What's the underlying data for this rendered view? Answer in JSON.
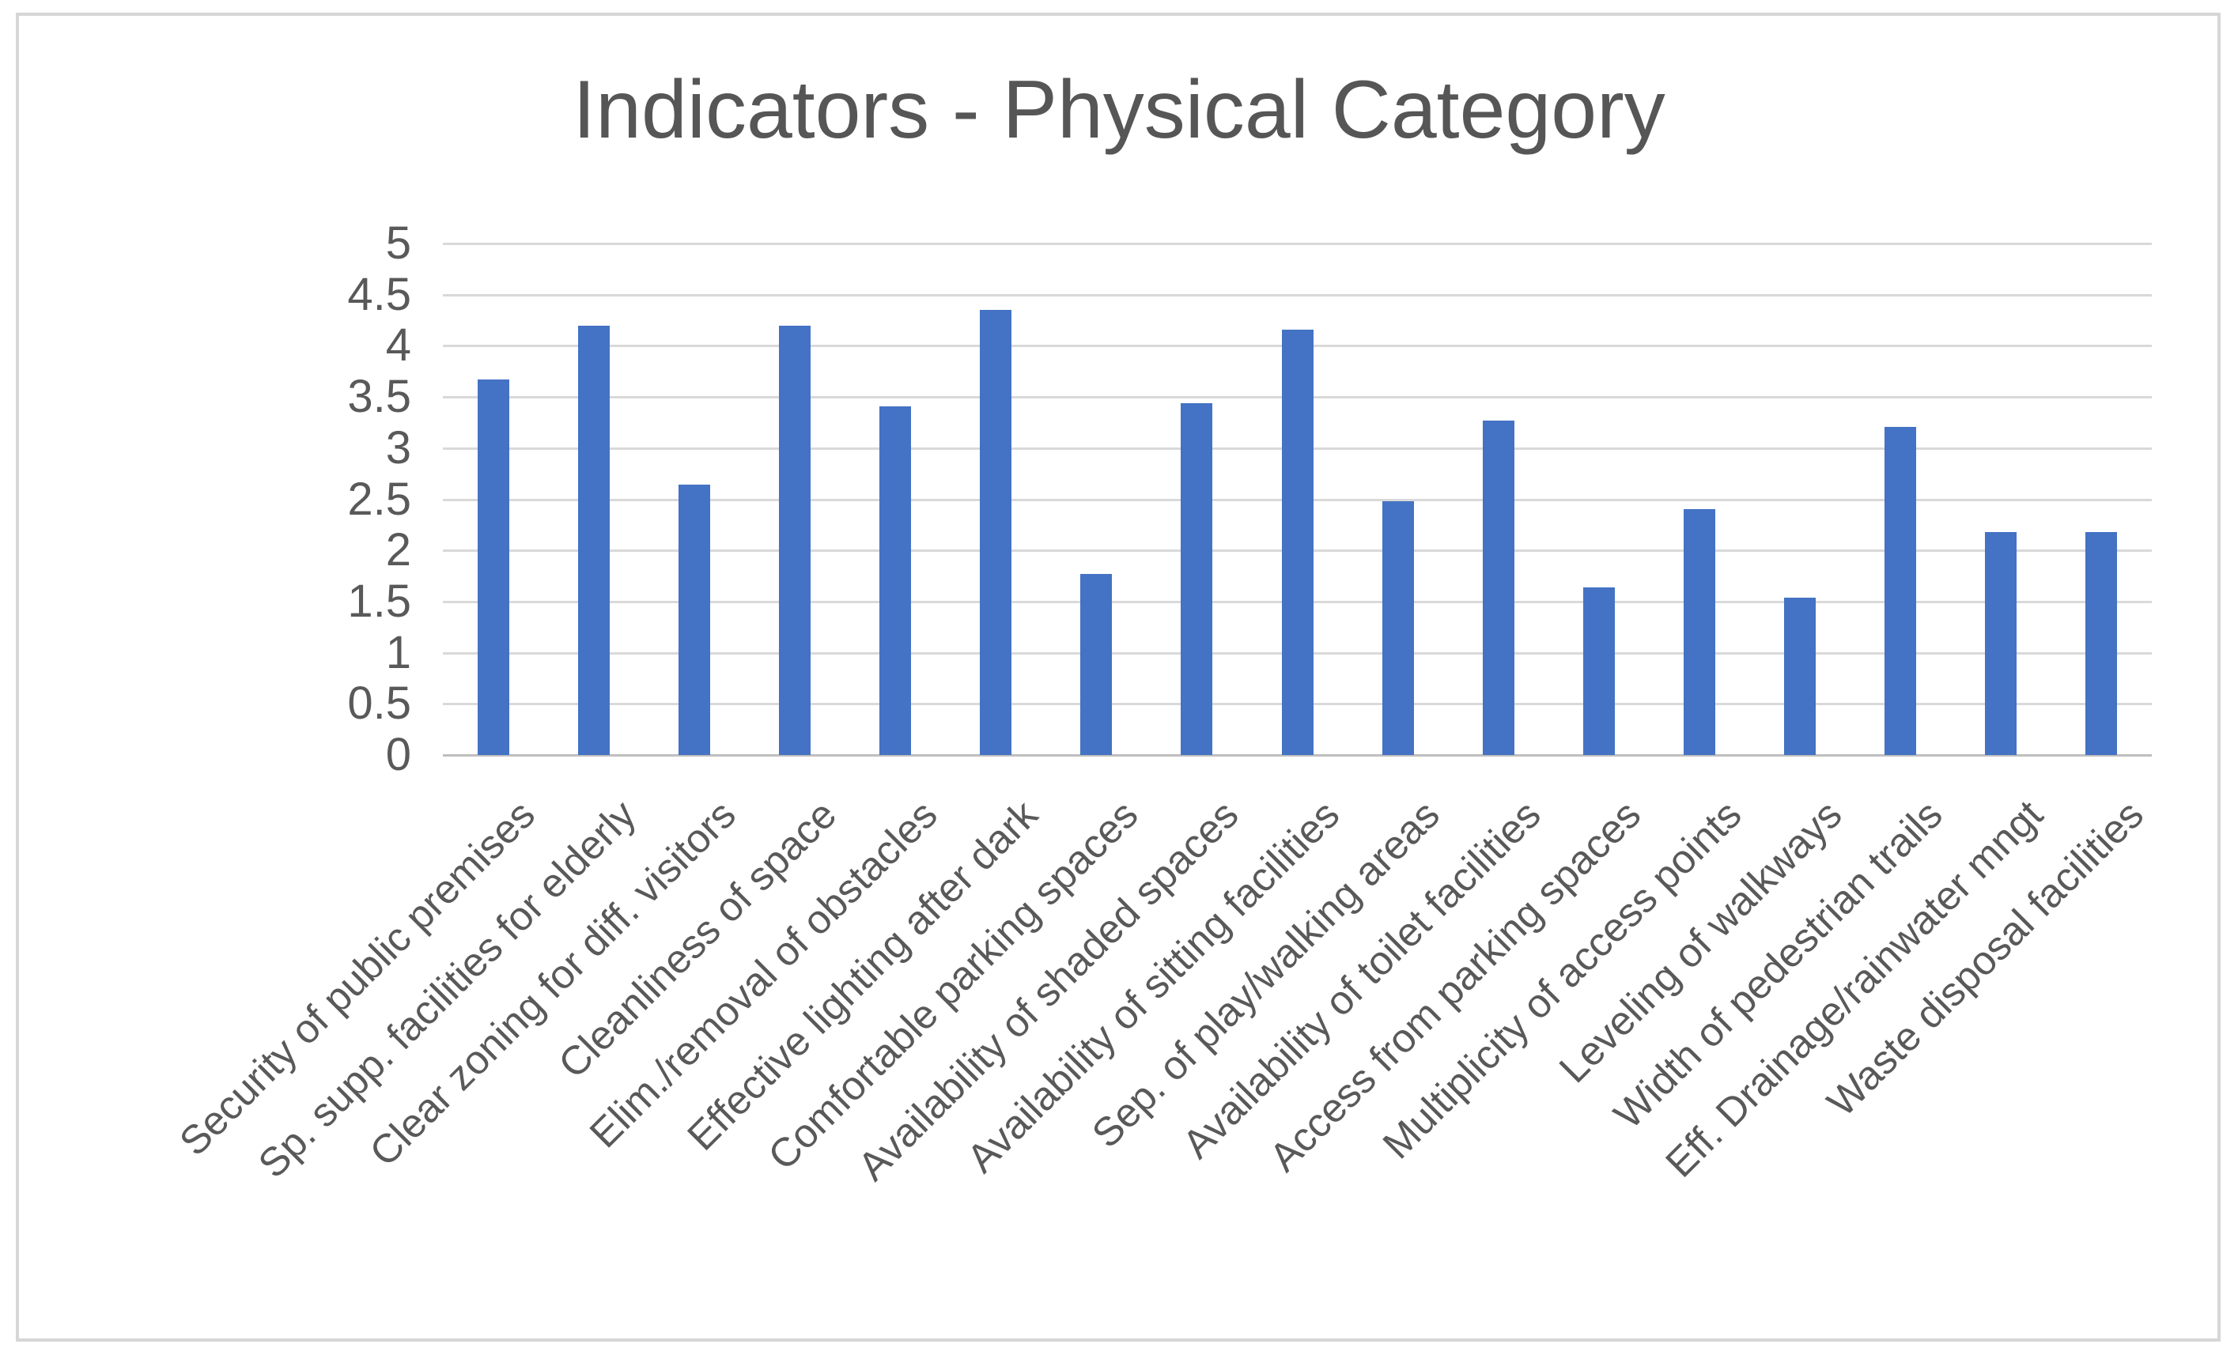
{
  "chart": {
    "title": "Indicators - Physical Category"
  },
  "chart_data": {
    "type": "bar",
    "title": "Indicators - Physical Category",
    "categories": [
      "Security of public premises",
      "Sp. supp. facilities for elderly",
      "Clear zoning for diff. visitors",
      "Cleanliness of space",
      "Elim./removal of obstacles",
      "Effective lighting after dark",
      "Comfortable parking spaces",
      "Availability of shaded spaces",
      "Availability of sitting facilities",
      "Sep. of play/walking areas",
      "Availability of toilet facilities",
      "Access from parking spaces",
      "Multiplicity of access points",
      "Leveling of walkways",
      "Width of pedestrian trails",
      "Eff. Drainage/rainwater mngt",
      "Waste disposal facilities"
    ],
    "values": [
      3.67,
      4.2,
      2.64,
      4.2,
      3.41,
      4.35,
      1.77,
      3.44,
      4.16,
      2.48,
      3.27,
      1.64,
      2.4,
      1.54,
      3.21,
      2.18,
      2.18
    ],
    "xlabel": "",
    "ylabel": "",
    "ylim": [
      0,
      5
    ],
    "yticks": [
      0,
      0.5,
      1,
      1.5,
      2,
      2.5,
      3,
      3.5,
      4,
      4.5,
      5
    ],
    "grid": true,
    "legend": false,
    "bar_color": "#4472C4",
    "gridline_color": "#D9D9D9",
    "baseline_color": "#BFBFBF",
    "axis_text_color": "#595959",
    "frame_border_color": "#D6D6D6"
  }
}
